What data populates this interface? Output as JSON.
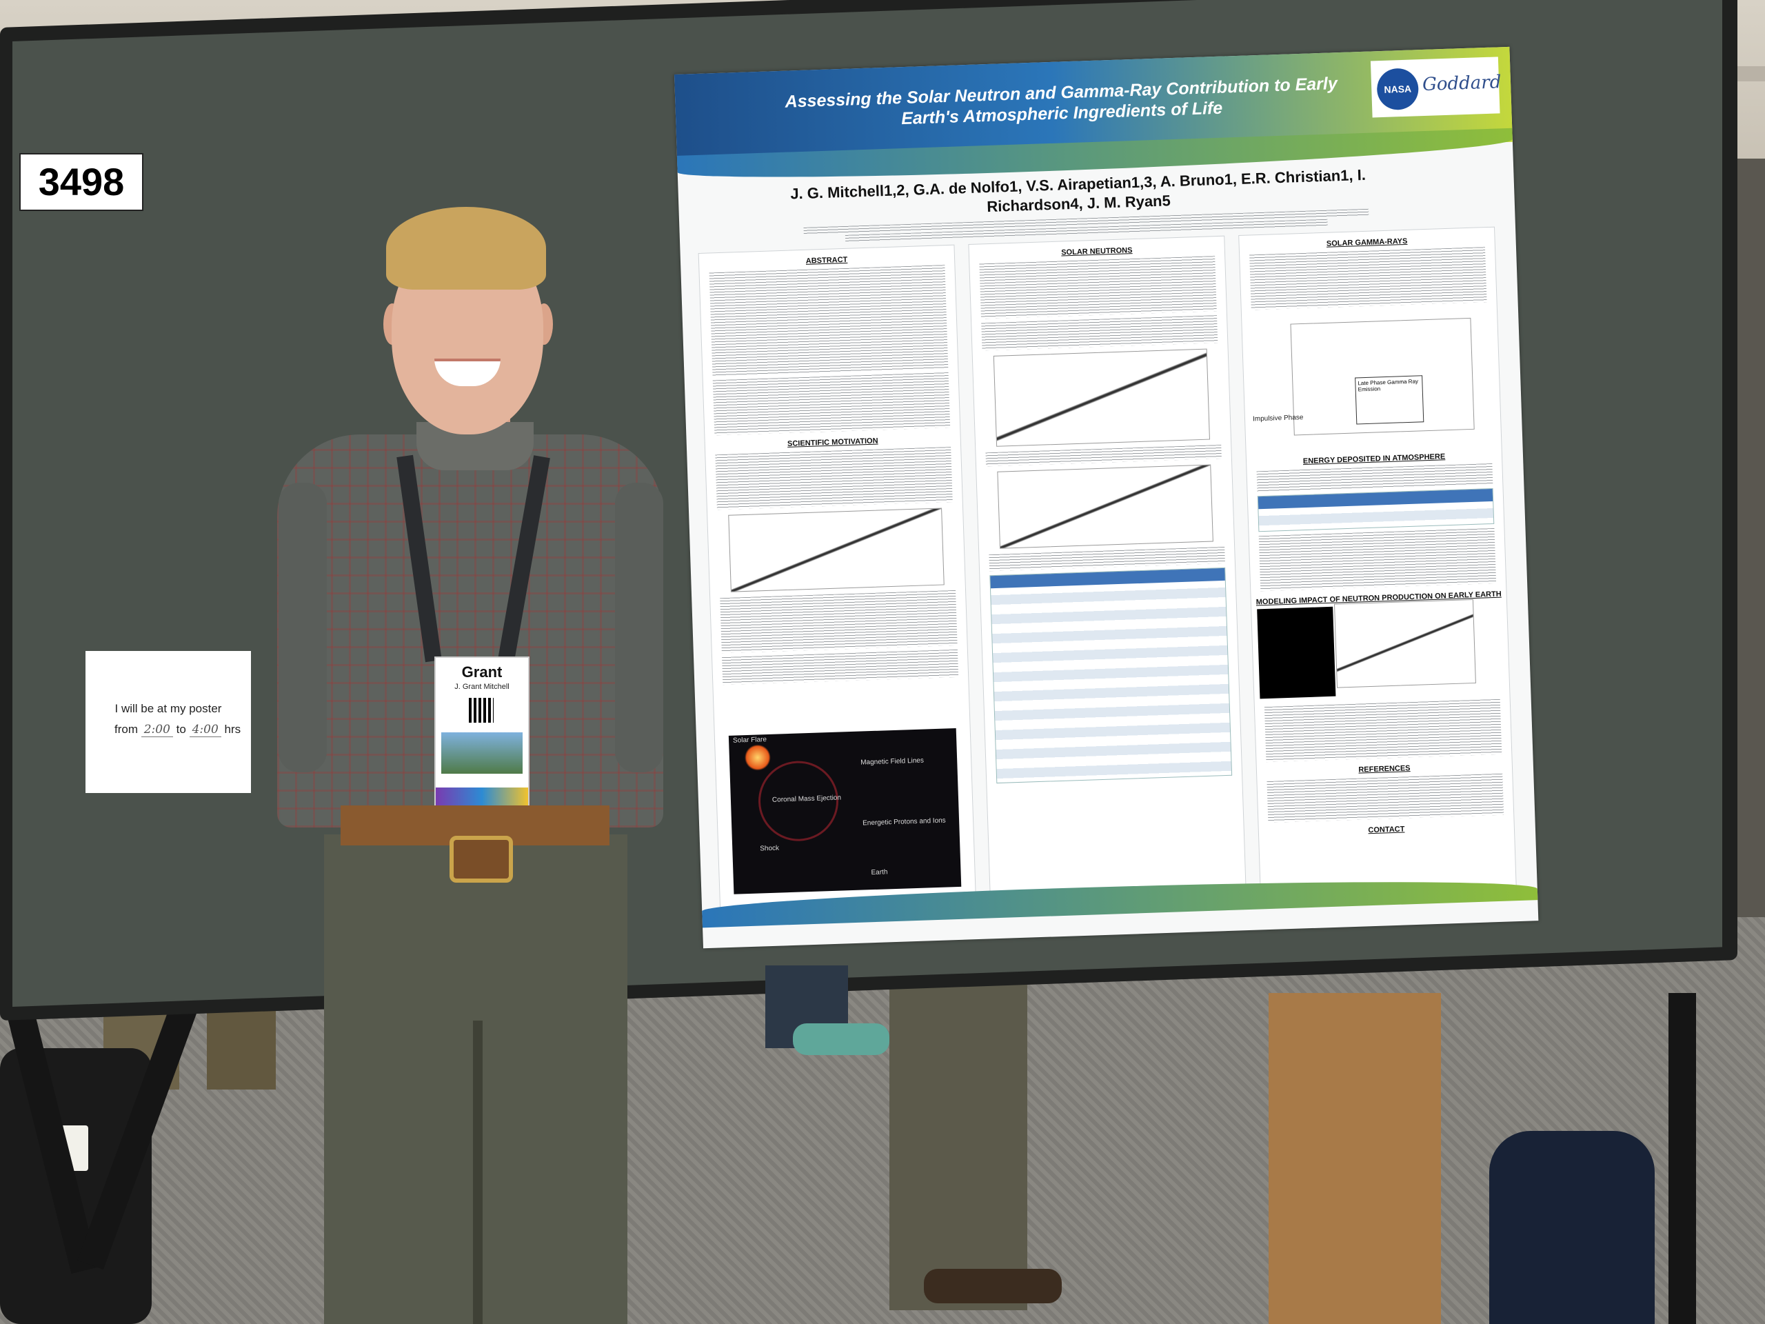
{
  "board": {
    "number": "3498",
    "availability": {
      "line1": "I will be at my poster",
      "from_label": "from",
      "from_value": "2:00",
      "to_label": "to",
      "to_value": "4:00",
      "unit": "hrs"
    }
  },
  "poster": {
    "title_line1": "Assessing the Solar Neutron and Gamma-Ray Contribution to Early",
    "title_line2": "Earth's Atmospheric Ingredients of Life",
    "authors_line1": "J. G. Mitchell1,2, G.A. de Nolfo1, V.S. Airapetian1,3, A. Bruno1, E.R. Christian1, I.",
    "authors_line2": "Richardson4, J. M. Ryan5",
    "logo_nasa": "NASA",
    "logo_goddard": "Goddard",
    "sections": {
      "abstract": "ABSTRACT",
      "scientific_motivation": "SCIENTIFIC MOTIVATION",
      "solar_neutrons": "SOLAR NEUTRONS",
      "solar_gamma_rays": "SOLAR GAMMA-RAYS",
      "energy_deposited": "ENERGY DEPOSITED IN ATMOSPHERE",
      "modeling_impact": "MODELING IMPACT OF NEUTRON PRODUCTION ON EARLY EARTH",
      "references": "REFERENCES",
      "contact": "CONTACT"
    },
    "figure_labels": {
      "solar_flare": "Solar Flare",
      "cme": "Coronal Mass Ejection",
      "magnetic_field_lines": "Magnetic Field Lines",
      "shock": "Shock",
      "energetic_protons": "Energetic Protons and Ions",
      "earth": "Earth",
      "late_phase": "Late Phase Gamma Ray Emission",
      "impulsive_phase": "Impulsive Phase"
    }
  },
  "badge": {
    "first_name": "Grant",
    "full_name": "J. Grant Mitchell"
  }
}
